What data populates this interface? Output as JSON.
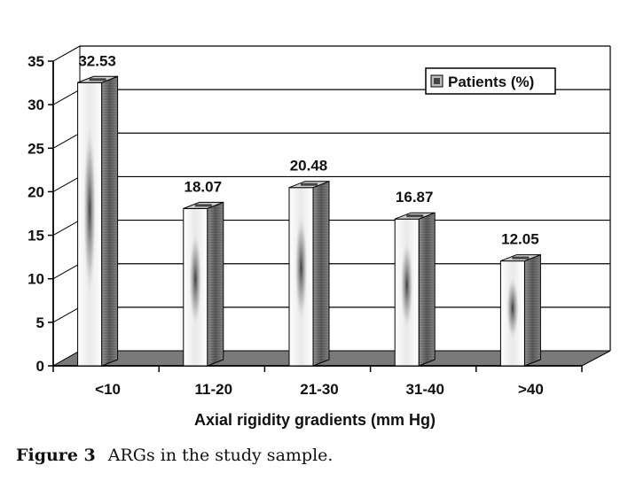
{
  "chart_data": {
    "type": "bar",
    "categories": [
      "<10",
      "11-20",
      "21-30",
      "31-40",
      ">40"
    ],
    "series": [
      {
        "name": "Patients (%)",
        "values": [
          32.53,
          18.07,
          20.48,
          16.87,
          12.05
        ]
      }
    ],
    "data_labels": [
      "32.53",
      "18.07",
      "20.48",
      "16.87",
      "12.05"
    ],
    "xlabel": "Axial rigidity gradients (mm Hg)",
    "ylabel": "",
    "ylim": [
      0,
      35
    ],
    "yticks": [
      0,
      5,
      10,
      15,
      20,
      25,
      30,
      35
    ],
    "grid": true,
    "legend": "top-right",
    "style": "3d-bar",
    "colors": {
      "bar_front": "#ffffff",
      "bar_side": "#8a8a8a",
      "floor": "#7a7a7a",
      "grid": "#000000"
    }
  },
  "caption": {
    "figure_label": "Figure 3",
    "text": "ARGs in the study sample."
  }
}
